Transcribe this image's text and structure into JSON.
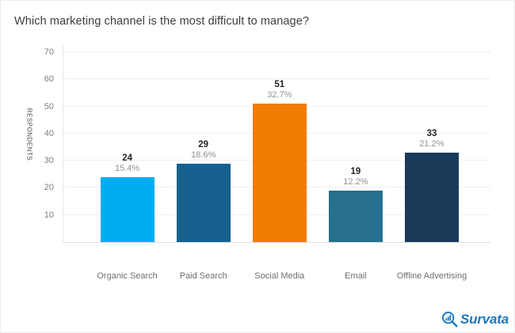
{
  "title": "Which marketing channel is the most difficult to manage?",
  "chart_data": {
    "type": "bar",
    "title": "Which marketing channel is the most difficult to manage?",
    "categories": [
      "Organic Search",
      "Paid Search",
      "Social Media",
      "Email",
      "Offline Advertising"
    ],
    "values": [
      24,
      29,
      51,
      19,
      33
    ],
    "percent_labels": [
      "15.4%",
      "18.6%",
      "32.7%",
      "12.2%",
      "21.2%"
    ],
    "bar_colors": [
      "#00aeef",
      "#17618f",
      "#ef7d04",
      "#27708f",
      "#1a3a5a"
    ],
    "xlabel": "",
    "ylabel": "RESPONDENTS",
    "yticks": [
      10,
      20,
      30,
      40,
      50,
      60,
      70
    ],
    "ylim": [
      0,
      73
    ],
    "grid": true,
    "legend": false
  },
  "branding": {
    "logo_text": "Survata",
    "logo_color": "#1779be",
    "logo_icon": "magnifier-bar-chart-icon"
  }
}
